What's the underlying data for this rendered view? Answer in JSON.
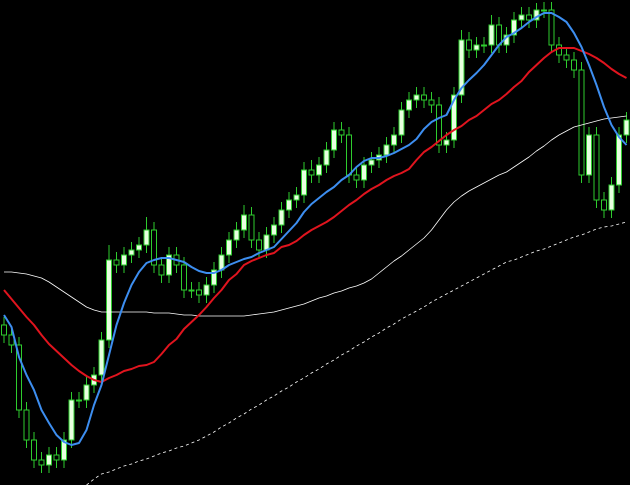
{
  "chart_data": {
    "type": "candlestick",
    "ylim": [
      0,
      485
    ],
    "up_color": "#e8ffe0",
    "down_color": "#000000",
    "wick_color": "#2ecc2e",
    "open": [
      160,
      150,
      140,
      75,
      45,
      25,
      20,
      30,
      25,
      45,
      85,
      85,
      100,
      110,
      145,
      225,
      220,
      230,
      235,
      240,
      255,
      220,
      210,
      230,
      220,
      195,
      195,
      190,
      200,
      215,
      230,
      245,
      255,
      270,
      245,
      235,
      250,
      260,
      275,
      285,
      290,
      315,
      310,
      320,
      335,
      355,
      350,
      310,
      305,
      320,
      325,
      330,
      340,
      350,
      375,
      385,
      390,
      385,
      380,
      340,
      345,
      390,
      445,
      435,
      440,
      440,
      460,
      440,
      450,
      465,
      470,
      465,
      475,
      475,
      440,
      430,
      425,
      415,
      310,
      350,
      285,
      275,
      300,
      350
    ],
    "high": [
      168,
      158,
      148,
      83,
      53,
      33,
      38,
      38,
      53,
      93,
      93,
      108,
      118,
      153,
      240,
      233,
      238,
      243,
      248,
      268,
      263,
      228,
      238,
      238,
      228,
      203,
      203,
      208,
      223,
      238,
      253,
      263,
      280,
      278,
      253,
      258,
      268,
      283,
      293,
      298,
      323,
      325,
      328,
      343,
      363,
      363,
      358,
      318,
      328,
      333,
      338,
      348,
      358,
      383,
      393,
      398,
      398,
      393,
      388,
      353,
      398,
      455,
      453,
      448,
      448,
      470,
      468,
      458,
      473,
      478,
      478,
      482,
      483,
      483,
      448,
      438,
      433,
      423,
      358,
      358,
      293,
      308,
      358,
      373
    ],
    "low": [
      142,
      132,
      67,
      37,
      17,
      12,
      12,
      17,
      17,
      37,
      77,
      77,
      92,
      102,
      137,
      212,
      212,
      222,
      227,
      232,
      212,
      202,
      202,
      212,
      187,
      187,
      182,
      182,
      192,
      207,
      222,
      237,
      247,
      237,
      227,
      227,
      242,
      252,
      267,
      277,
      282,
      302,
      302,
      312,
      327,
      342,
      302,
      297,
      297,
      312,
      317,
      322,
      332,
      342,
      367,
      377,
      377,
      372,
      332,
      332,
      337,
      382,
      427,
      427,
      432,
      432,
      432,
      432,
      442,
      457,
      457,
      457,
      467,
      432,
      422,
      417,
      407,
      302,
      302,
      277,
      267,
      267,
      292,
      342
    ],
    "close": [
      150,
      140,
      75,
      45,
      25,
      20,
      30,
      25,
      45,
      85,
      85,
      100,
      110,
      145,
      225,
      220,
      230,
      235,
      240,
      255,
      220,
      210,
      230,
      220,
      195,
      195,
      190,
      200,
      215,
      230,
      245,
      255,
      270,
      245,
      235,
      250,
      260,
      275,
      285,
      290,
      315,
      310,
      320,
      335,
      355,
      350,
      310,
      305,
      320,
      325,
      330,
      340,
      350,
      375,
      385,
      390,
      385,
      380,
      340,
      345,
      390,
      445,
      435,
      440,
      440,
      460,
      440,
      450,
      465,
      470,
      465,
      475,
      475,
      440,
      430,
      425,
      415,
      310,
      350,
      285,
      275,
      300,
      350,
      365
    ],
    "series": [
      {
        "color": "#ffffff",
        "width": 0.8,
        "style": "solid",
        "values": [
          213,
          213,
          212,
          211,
          209,
          207,
          203,
          198,
          193,
          188,
          183,
          178,
          175,
          173,
          173,
          173,
          173,
          173,
          173,
          173,
          172,
          172,
          172,
          171,
          170,
          170,
          169,
          169,
          169,
          169,
          169,
          169,
          169,
          170,
          171,
          172,
          173,
          175,
          177,
          179,
          181,
          184,
          187,
          189,
          192,
          194,
          197,
          199,
          202,
          206,
          212,
          218,
          224,
          229,
          235,
          241,
          247,
          255,
          265,
          275,
          283,
          289,
          294,
          298,
          302,
          306,
          310,
          313,
          318,
          323,
          328,
          334,
          339,
          345,
          350,
          354,
          358,
          360,
          362,
          364,
          366,
          367,
          368,
          369
        ]
      },
      {
        "color": "#ffffff",
        "width": 0.8,
        "style": "dotted",
        "values": [
          null,
          null,
          null,
          null,
          null,
          null,
          null,
          null,
          null,
          null,
          null,
          0,
          6,
          11,
          13,
          16,
          19,
          21,
          24,
          26,
          29,
          32,
          34,
          37,
          39,
          42,
          45,
          49,
          53,
          58,
          62,
          67,
          71,
          76,
          80,
          85,
          89,
          94,
          98,
          103,
          107,
          112,
          116,
          121,
          125,
          130,
          134,
          139,
          143,
          148,
          152,
          157,
          161,
          166,
          170,
          174,
          178,
          183,
          187,
          191,
          195,
          199,
          203,
          207,
          211,
          215,
          219,
          223,
          225,
          228,
          231,
          234,
          236,
          239,
          242,
          245,
          248,
          250,
          253,
          256,
          258,
          259,
          261,
          263
        ]
      },
      {
        "color": "#e0141e",
        "width": 2,
        "style": "solid",
        "values": [
          195,
          186,
          177,
          168,
          160,
          150,
          141,
          134,
          127,
          120,
          114,
          109,
          105,
          103,
          107,
          110,
          114,
          116,
          119,
          120,
          123,
          131,
          140,
          146,
          156,
          163,
          170,
          178,
          187,
          195,
          205,
          211,
          220,
          224,
          227,
          230,
          232,
          238,
          240,
          244,
          250,
          255,
          259,
          263,
          268,
          274,
          280,
          285,
          291,
          296,
          300,
          305,
          309,
          312,
          316,
          325,
          333,
          338,
          344,
          350,
          355,
          359,
          365,
          369,
          375,
          381,
          385,
          391,
          398,
          404,
          413,
          420,
          427,
          433,
          437,
          437,
          437,
          434,
          431,
          427,
          422,
          416,
          411,
          407
        ]
      },
      {
        "color": "#3d8ef0",
        "width": 2,
        "style": "solid",
        "values": [
          170,
          158,
          128,
          110,
          95,
          75,
          62,
          50,
          43,
          40,
          42,
          55,
          80,
          100,
          130,
          160,
          182,
          200,
          213,
          222,
          225,
          227,
          227,
          225,
          223,
          218,
          214,
          212,
          212,
          215,
          220,
          223,
          226,
          228,
          232,
          235,
          238,
          246,
          254,
          262,
          273,
          281,
          287,
          293,
          298,
          305,
          310,
          318,
          324,
          327,
          327,
          329,
          332,
          336,
          340,
          346,
          356,
          363,
          367,
          370,
          385,
          397,
          405,
          412,
          420,
          430,
          440,
          448,
          452,
          457,
          463,
          468,
          472,
          472,
          468,
          463,
          452,
          438,
          420,
          400,
          378,
          360,
          348,
          340
        ]
      }
    ]
  }
}
